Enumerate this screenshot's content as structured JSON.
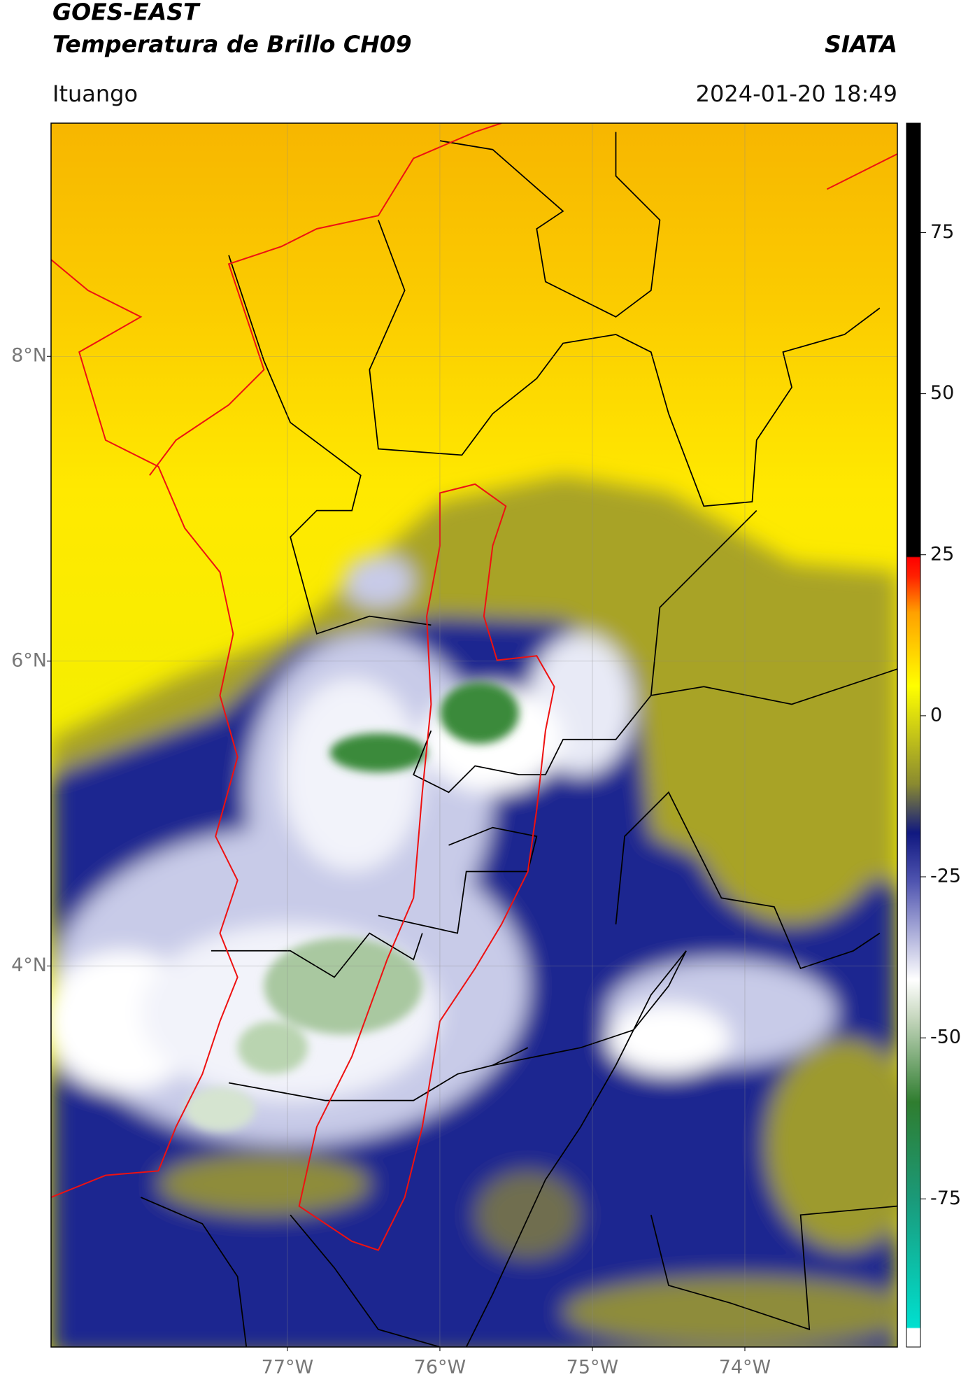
{
  "chart_data": {
    "type": "map",
    "title": "GOES-EAST",
    "subtitle": "Temperatura de Brillo CH09",
    "source": "SIATA",
    "region": "Ituango",
    "datetime": "2024-01-20 18:49",
    "xlim": [
      -78.55,
      -73.0
    ],
    "ylim": [
      1.5,
      9.53
    ],
    "xticks": [
      {
        "value": -77,
        "label": "77°W"
      },
      {
        "value": -76,
        "label": "76°W"
      },
      {
        "value": -75,
        "label": "75°W"
      },
      {
        "value": -74,
        "label": "74°W"
      }
    ],
    "yticks": [
      {
        "value": 8,
        "label": "8°N"
      },
      {
        "value": 6,
        "label": "6°N"
      },
      {
        "value": 4,
        "label": "4°N"
      }
    ],
    "grid": true,
    "colorbar": {
      "lim": [
        -98,
        92
      ],
      "ticks": [
        75,
        50,
        25,
        0,
        -25,
        -50,
        -75
      ]
    }
  }
}
